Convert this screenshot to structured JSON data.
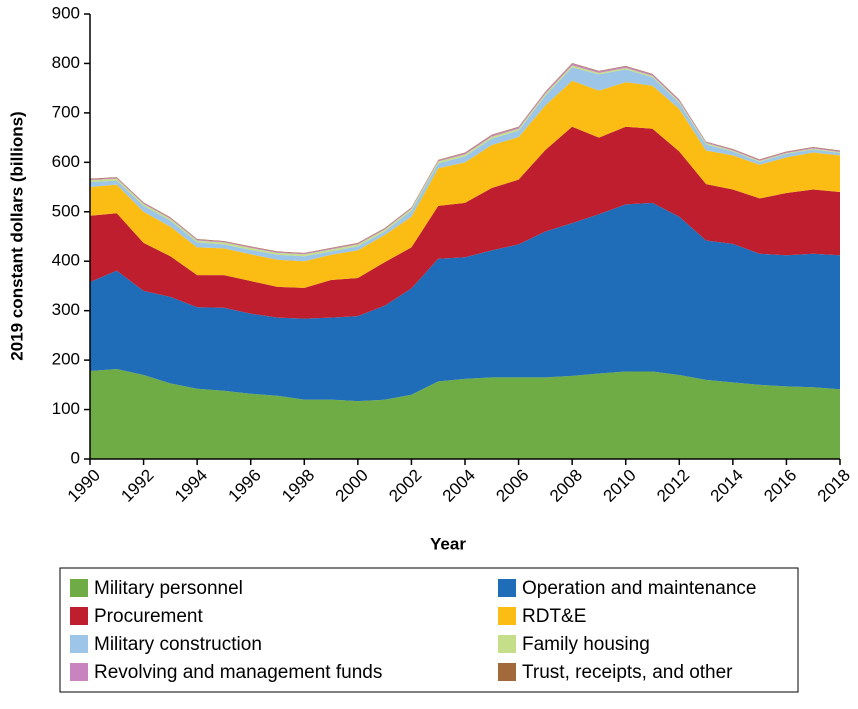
{
  "chart_data": {
    "type": "stacked_area",
    "x_label": "Year",
    "y_label": "2019 constant dollars (billions)",
    "x": [
      1990,
      1991,
      1992,
      1993,
      1994,
      1995,
      1996,
      1997,
      1998,
      1999,
      2000,
      2001,
      2002,
      2003,
      2004,
      2005,
      2006,
      2007,
      2008,
      2009,
      2010,
      2011,
      2012,
      2013,
      2014,
      2015,
      2016,
      2017,
      2018
    ],
    "xlim": [
      1990,
      2018
    ],
    "xticks": [
      1990,
      1992,
      1994,
      1996,
      1998,
      2000,
      2002,
      2004,
      2006,
      2008,
      2010,
      2012,
      2014,
      2016,
      2018
    ],
    "ylim": [
      0,
      900
    ],
    "yticks": [
      0,
      100,
      200,
      300,
      400,
      500,
      600,
      700,
      800,
      900
    ],
    "series": [
      {
        "name": "Military personnel",
        "color": "#6fac46",
        "values": [
          178,
          182,
          170,
          153,
          142,
          138,
          132,
          128,
          120,
          120,
          117,
          120,
          130,
          157,
          162,
          165,
          165,
          165,
          168,
          173,
          177,
          177,
          170,
          160,
          155,
          150,
          147,
          145,
          141
        ]
      },
      {
        "name": "Operation and maintenance",
        "color": "#1f6db8",
        "values": [
          180,
          199,
          170,
          175,
          165,
          168,
          162,
          158,
          164,
          166,
          172,
          190,
          215,
          248,
          246,
          257,
          269,
          295,
          309,
          322,
          338,
          341,
          320,
          282,
          280,
          265,
          265,
          270,
          271
        ]
      },
      {
        "name": "Procurement",
        "color": "#be1e2d",
        "values": [
          134,
          116,
          97,
          82,
          65,
          66,
          66,
          62,
          62,
          76,
          77,
          88,
          83,
          107,
          110,
          126,
          131,
          165,
          195,
          155,
          157,
          150,
          132,
          114,
          110,
          112,
          126,
          130,
          128
        ]
      },
      {
        "name": "RDT&E",
        "color": "#fbbd13",
        "values": [
          58,
          58,
          63,
          60,
          56,
          54,
          54,
          55,
          54,
          51,
          56,
          55,
          62,
          76,
          82,
          87,
          86,
          90,
          93,
          95,
          90,
          87,
          86,
          68,
          69,
          68,
          72,
          75,
          74
        ]
      },
      {
        "name": "Military construction",
        "color": "#9cc5e8",
        "values": [
          10,
          8,
          12,
          12,
          10,
          8,
          9,
          10,
          10,
          7,
          8,
          7,
          12,
          10,
          12,
          13,
          13,
          20,
          27,
          33,
          26,
          17,
          12,
          12,
          8,
          6,
          7,
          6,
          5
        ]
      },
      {
        "name": "Family housing",
        "color": "#c4de8a",
        "values": [
          4,
          4,
          4,
          4,
          4,
          4,
          4,
          4,
          4,
          4,
          4,
          4,
          4,
          4,
          4,
          4,
          4,
          4,
          4,
          3,
          3,
          3,
          3,
          3,
          2,
          2,
          2,
          2,
          2
        ]
      },
      {
        "name": "Revolving and management funds",
        "color": "#c983bf",
        "values": [
          2,
          2,
          2,
          2,
          2,
          2,
          2,
          2,
          2,
          2,
          2,
          2,
          2,
          2,
          3,
          3,
          3,
          3,
          4,
          3,
          3,
          3,
          3,
          2,
          2,
          2,
          2,
          2,
          2
        ]
      },
      {
        "name": "Trust, receipts, and other",
        "color": "#a2693a",
        "values": [
          1,
          1,
          1,
          1,
          1,
          1,
          1,
          1,
          1,
          1,
          1,
          1,
          1,
          1,
          1,
          1,
          1,
          1,
          1,
          1,
          1,
          1,
          1,
          1,
          1,
          1,
          1,
          1,
          1
        ]
      }
    ]
  }
}
